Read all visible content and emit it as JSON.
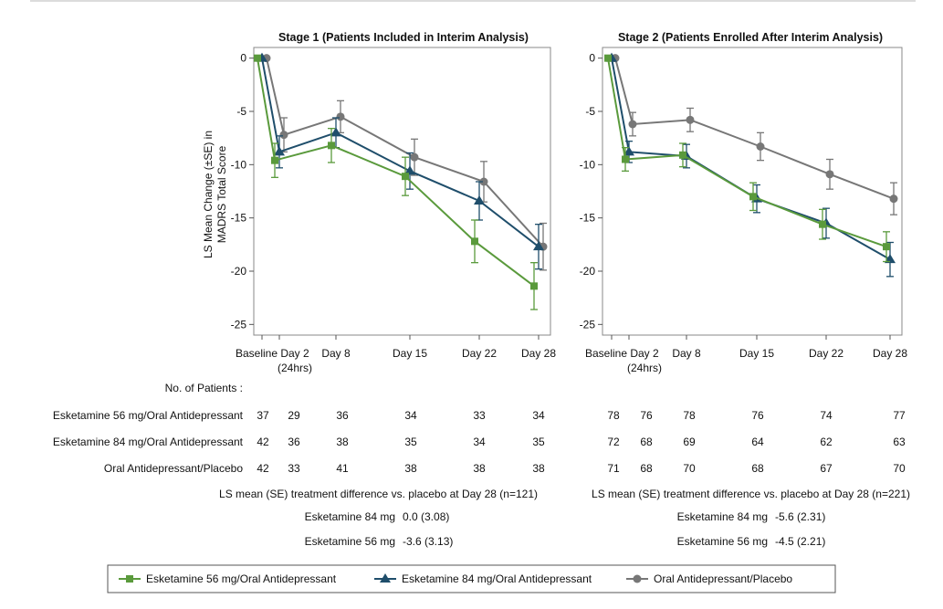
{
  "colors": {
    "esk56": "#5a9a3c",
    "esk84": "#1f4e6b",
    "placebo": "#777777"
  },
  "y_axis_label_lines": [
    "LS Mean Change (±SE) in",
    "MADRS Total Score"
  ],
  "x_tick_labels": [
    "Baseline",
    "Day 2",
    "(24hrs)",
    "Day 8",
    "Day 15",
    "Day 22",
    "Day 28"
  ],
  "chart_data": [
    {
      "type": "line",
      "title": "Stage 1 (Patients Included in Interim Analysis)",
      "ylabel": "LS Mean Change (±SE) in MADRS Total Score",
      "ylim": [
        -26,
        1
      ],
      "yticks": [
        0,
        -5,
        -10,
        -15,
        -20,
        -25
      ],
      "x": [
        "Baseline",
        "Day 2",
        "Day 8",
        "Day 15",
        "Day 22",
        "Day 28"
      ],
      "series": [
        {
          "name": "Esketamine 56 mg/Oral Antidepressant",
          "key": "esk56",
          "values": [
            0,
            -9.6,
            -8.2,
            -11.1,
            -17.2,
            -21.4
          ],
          "se": [
            0,
            1.6,
            1.6,
            1.8,
            2.0,
            2.2
          ]
        },
        {
          "name": "Esketamine 84 mg/Oral Antidepressant",
          "key": "esk84",
          "values": [
            0,
            -8.8,
            -7.0,
            -10.6,
            -13.4,
            -17.7
          ],
          "se": [
            0,
            1.5,
            1.4,
            1.7,
            1.8,
            2.1
          ]
        },
        {
          "name": "Oral Antidepressant/Placebo",
          "key": "placebo",
          "values": [
            0,
            -7.2,
            -5.5,
            -9.3,
            -11.6,
            -17.7
          ],
          "se": [
            0,
            1.6,
            1.5,
            1.7,
            1.9,
            2.2
          ]
        }
      ]
    },
    {
      "type": "line",
      "title": "Stage 2 (Patients Enrolled After Interim Analysis)",
      "ylim": [
        -26,
        1
      ],
      "yticks": [
        0,
        -5,
        -10,
        -15,
        -20,
        -25
      ],
      "x": [
        "Baseline",
        "Day 2",
        "Day 8",
        "Day 15",
        "Day 22",
        "Day 28"
      ],
      "series": [
        {
          "name": "Esketamine 56 mg/Oral Antidepressant",
          "key": "esk56",
          "values": [
            0,
            -9.5,
            -9.1,
            -13.0,
            -15.6,
            -17.7
          ],
          "se": [
            0,
            1.1,
            1.1,
            1.3,
            1.4,
            1.4
          ]
        },
        {
          "name": "Esketamine 84 mg/Oral Antidepressant",
          "key": "esk84",
          "values": [
            0,
            -8.8,
            -9.2,
            -13.2,
            -15.5,
            -18.9
          ],
          "se": [
            0,
            1.0,
            1.1,
            1.3,
            1.4,
            1.6
          ]
        },
        {
          "name": "Oral Antidepressant/Placebo",
          "key": "placebo",
          "values": [
            0,
            -6.2,
            -5.8,
            -8.3,
            -10.9,
            -13.2
          ],
          "se": [
            0,
            1.1,
            1.1,
            1.3,
            1.4,
            1.5
          ]
        }
      ]
    }
  ],
  "patients_table": {
    "header": "No. of Patients :",
    "rows": [
      {
        "label": "Esketamine 56 mg/Oral Antidepressant",
        "stage1": [
          "37",
          "29",
          "36",
          "34",
          "33",
          "34"
        ],
        "stage2": [
          "78",
          "76",
          "78",
          "76",
          "74",
          "77"
        ]
      },
      {
        "label": "Esketamine 84 mg/Oral Antidepressant",
        "stage1": [
          "42",
          "36",
          "38",
          "35",
          "34",
          "35"
        ],
        "stage2": [
          "72",
          "68",
          "69",
          "64",
          "62",
          "63"
        ]
      },
      {
        "label": "Oral Antidepressant/Placebo",
        "stage1": [
          "42",
          "33",
          "41",
          "38",
          "38",
          "38"
        ],
        "stage2": [
          "71",
          "68",
          "70",
          "68",
          "67",
          "70"
        ]
      }
    ]
  },
  "ls_mean": {
    "stage1": {
      "heading": "LS mean (SE) treatment difference vs. placebo at Day 28 (n=121)",
      "rows": [
        {
          "label": "Esketamine 84 mg",
          "value": "0.0 (3.08)"
        },
        {
          "label": "Esketamine 56 mg",
          "value": "-3.6 (3.13)"
        }
      ]
    },
    "stage2": {
      "heading": "LS mean (SE) treatment difference vs. placebo at Day 28 (n=221)",
      "rows": [
        {
          "label": "Esketamine 84 mg",
          "value": "-5.6 (2.31)"
        },
        {
          "label": "Esketamine 56 mg",
          "value": "-4.5 (2.21)"
        }
      ]
    }
  },
  "legend": [
    {
      "label": "Esketamine 56 mg/Oral Antidepressant",
      "key": "esk56",
      "marker": "square"
    },
    {
      "label": "Esketamine 84 mg/Oral Antidepressant",
      "key": "esk84",
      "marker": "triangle"
    },
    {
      "label": "Oral Antidepressant/Placebo",
      "key": "placebo",
      "marker": "circle"
    }
  ]
}
